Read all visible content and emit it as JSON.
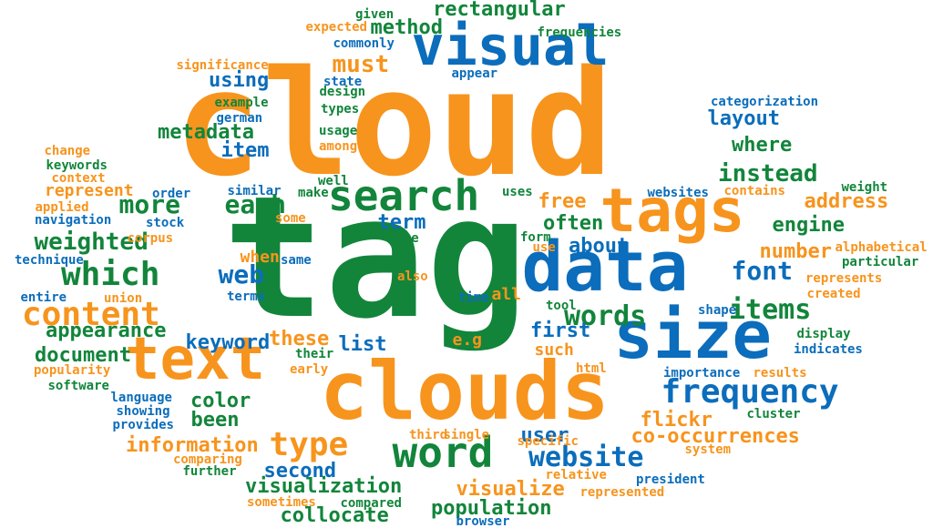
{
  "colors": {
    "orange": "#f7941d",
    "green": "#12853b",
    "blue": "#0b6dbb"
  },
  "words": [
    {
      "text": "cloud",
      "color": "orange"
    },
    {
      "text": "tag",
      "color": "green"
    },
    {
      "text": "clouds",
      "color": "orange"
    },
    {
      "text": "data",
      "color": "blue"
    },
    {
      "text": "size",
      "color": "blue"
    },
    {
      "text": "tags",
      "color": "orange"
    },
    {
      "text": "text",
      "color": "orange"
    },
    {
      "text": "visual",
      "color": "blue"
    },
    {
      "text": "search",
      "color": "green"
    },
    {
      "text": "word",
      "color": "green"
    },
    {
      "text": "frequency",
      "color": "blue"
    },
    {
      "text": "content",
      "color": "orange"
    },
    {
      "text": "which",
      "color": "green"
    },
    {
      "text": "type",
      "color": "orange"
    },
    {
      "text": "website",
      "color": "blue"
    },
    {
      "text": "words",
      "color": "green"
    },
    {
      "text": "items",
      "color": "green"
    },
    {
      "text": "font",
      "color": "blue"
    },
    {
      "text": "each",
      "color": "green"
    },
    {
      "text": "more",
      "color": "green"
    },
    {
      "text": "web",
      "color": "blue"
    },
    {
      "text": "weighted",
      "color": "green"
    },
    {
      "text": "instead",
      "color": "green"
    },
    {
      "text": "must",
      "color": "orange"
    },
    {
      "text": "rectangular",
      "color": "green"
    },
    {
      "text": "method",
      "color": "green"
    },
    {
      "text": "metadata",
      "color": "green"
    },
    {
      "text": "item",
      "color": "blue"
    },
    {
      "text": "using",
      "color": "blue"
    },
    {
      "text": "layout",
      "color": "blue"
    },
    {
      "text": "where",
      "color": "green"
    },
    {
      "text": "engine",
      "color": "green"
    },
    {
      "text": "number",
      "color": "orange"
    },
    {
      "text": "free",
      "color": "orange"
    },
    {
      "text": "address",
      "color": "orange"
    },
    {
      "text": "often",
      "color": "green"
    },
    {
      "text": "term",
      "color": "blue"
    },
    {
      "text": "about",
      "color": "blue"
    },
    {
      "text": "list",
      "color": "blue"
    },
    {
      "text": "first",
      "color": "blue"
    },
    {
      "text": "these",
      "color": "orange"
    },
    {
      "text": "appearance",
      "color": "green"
    },
    {
      "text": "document",
      "color": "green"
    },
    {
      "text": "keyword",
      "color": "blue"
    },
    {
      "text": "color",
      "color": "green"
    },
    {
      "text": "been",
      "color": "green"
    },
    {
      "text": "information",
      "color": "orange"
    },
    {
      "text": "user",
      "color": "blue"
    },
    {
      "text": "co-occurrences",
      "color": "orange"
    },
    {
      "text": "flickr",
      "color": "orange"
    },
    {
      "text": "second",
      "color": "blue"
    },
    {
      "text": "visualization",
      "color": "green"
    },
    {
      "text": "visualize",
      "color": "orange"
    },
    {
      "text": "population",
      "color": "green"
    },
    {
      "text": "collocate",
      "color": "green"
    },
    {
      "text": "represent",
      "color": "orange"
    },
    {
      "text": "all",
      "color": "orange"
    },
    {
      "text": "such",
      "color": "orange"
    },
    {
      "text": "e.g",
      "color": "orange"
    },
    {
      "text": "when",
      "color": "orange"
    },
    {
      "text": "expected",
      "color": "orange"
    },
    {
      "text": "given",
      "color": "green"
    },
    {
      "text": "commonly",
      "color": "blue"
    },
    {
      "text": "frequencies",
      "color": "green"
    },
    {
      "text": "significance",
      "color": "orange"
    },
    {
      "text": "appear",
      "color": "blue"
    },
    {
      "text": "state",
      "color": "blue"
    },
    {
      "text": "design",
      "color": "green"
    },
    {
      "text": "example",
      "color": "green"
    },
    {
      "text": "types",
      "color": "green"
    },
    {
      "text": "german",
      "color": "blue"
    },
    {
      "text": "usage",
      "color": "green"
    },
    {
      "text": "among",
      "color": "orange"
    },
    {
      "text": "categorization",
      "color": "blue"
    },
    {
      "text": "change",
      "color": "orange"
    },
    {
      "text": "keywords",
      "color": "green"
    },
    {
      "text": "context",
      "color": "orange"
    },
    {
      "text": "well",
      "color": "green"
    },
    {
      "text": "make",
      "color": "green"
    },
    {
      "text": "similar",
      "color": "blue"
    },
    {
      "text": "order",
      "color": "blue"
    },
    {
      "text": "applied",
      "color": "orange"
    },
    {
      "text": "navigation",
      "color": "blue"
    },
    {
      "text": "stock",
      "color": "blue"
    },
    {
      "text": "some",
      "color": "orange"
    },
    {
      "text": "uses",
      "color": "green"
    },
    {
      "text": "websites",
      "color": "blue"
    },
    {
      "text": "weight",
      "color": "green"
    },
    {
      "text": "contains",
      "color": "orange"
    },
    {
      "text": "corpus",
      "color": "orange"
    },
    {
      "text": "site",
      "color": "green"
    },
    {
      "text": "form",
      "color": "green"
    },
    {
      "text": "use",
      "color": "orange"
    },
    {
      "text": "alphabetical",
      "color": "orange"
    },
    {
      "text": "technique",
      "color": "blue"
    },
    {
      "text": "same",
      "color": "blue"
    },
    {
      "text": "particular",
      "color": "green"
    },
    {
      "text": "represents",
      "color": "orange"
    },
    {
      "text": "entire",
      "color": "blue"
    },
    {
      "text": "union",
      "color": "orange"
    },
    {
      "text": "terms",
      "color": "blue"
    },
    {
      "text": "also",
      "color": "orange"
    },
    {
      "text": "time",
      "color": "blue"
    },
    {
      "text": "tool",
      "color": "green"
    },
    {
      "text": "created",
      "color": "orange"
    },
    {
      "text": "shape",
      "color": "blue"
    },
    {
      "text": "display",
      "color": "green"
    },
    {
      "text": "indicates",
      "color": "blue"
    },
    {
      "text": "their",
      "color": "green"
    },
    {
      "text": "early",
      "color": "orange"
    },
    {
      "text": "popularity",
      "color": "orange"
    },
    {
      "text": "software",
      "color": "green"
    },
    {
      "text": "html",
      "color": "orange"
    },
    {
      "text": "importance",
      "color": "blue"
    },
    {
      "text": "results",
      "color": "orange"
    },
    {
      "text": "language",
      "color": "blue"
    },
    {
      "text": "showing",
      "color": "blue"
    },
    {
      "text": "provides",
      "color": "blue"
    },
    {
      "text": "cluster",
      "color": "green"
    },
    {
      "text": "third",
      "color": "orange"
    },
    {
      "text": "single",
      "color": "orange"
    },
    {
      "text": "specific",
      "color": "orange"
    },
    {
      "text": "system",
      "color": "orange"
    },
    {
      "text": "comparing",
      "color": "orange"
    },
    {
      "text": "further",
      "color": "green"
    },
    {
      "text": "relative",
      "color": "orange"
    },
    {
      "text": "president",
      "color": "blue"
    },
    {
      "text": "sometimes",
      "color": "orange"
    },
    {
      "text": "compared",
      "color": "green"
    },
    {
      "text": "represented",
      "color": "orange"
    },
    {
      "text": "browser",
      "color": "blue"
    }
  ]
}
